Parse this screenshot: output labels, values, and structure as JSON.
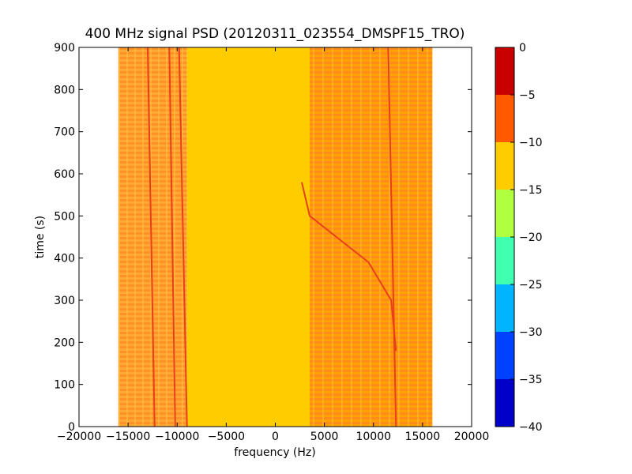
{
  "chart_data": {
    "type": "heatmap",
    "title": "400 MHz signal PSD (20120311_023554_DMSPF15_TRO)",
    "xlabel": "frequency (Hz)",
    "ylabel": "time (s)",
    "xlim": [
      -20000,
      20000
    ],
    "ylim": [
      0,
      900
    ],
    "xticks": [
      -20000,
      -15000,
      -10000,
      -5000,
      0,
      5000,
      10000,
      15000,
      20000
    ],
    "xtick_labels": [
      "−20000",
      "−15000",
      "−10000",
      "−5000",
      "0",
      "5000",
      "10000",
      "15000",
      "20000"
    ],
    "yticks": [
      0,
      100,
      200,
      300,
      400,
      500,
      600,
      700,
      800,
      900
    ],
    "ytick_labels": [
      "0",
      "100",
      "200",
      "300",
      "400",
      "500",
      "600",
      "700",
      "800",
      "900"
    ],
    "data_extent_x": [
      -16000,
      16000
    ],
    "colorbar": {
      "levels": [
        -40,
        -35,
        -30,
        -25,
        -20,
        -15,
        -10,
        -5,
        0
      ],
      "tick_labels": [
        "−40",
        "−35",
        "−30",
        "−25",
        "−20",
        "−15",
        "−10",
        "−5",
        "0"
      ],
      "colors": [
        "#0000c8",
        "#0040ff",
        "#00b4ff",
        "#40ffb0",
        "#b0ff40",
        "#ffcc00",
        "#ff5a00",
        "#c80000"
      ]
    },
    "regions": [
      {
        "x": [
          -16000,
          -9000
        ],
        "level": "-10 to -5",
        "note": "banded"
      },
      {
        "x": [
          -9000,
          3500
        ],
        "level": "-15 to -10"
      },
      {
        "x": [
          3500,
          16000
        ],
        "level": "-10 to -5",
        "note": "banded"
      }
    ],
    "traces": [
      {
        "points": [
          [
            -13000,
            900
          ],
          [
            -12300,
            0
          ]
        ]
      },
      {
        "points": [
          [
            -10800,
            900
          ],
          [
            -10200,
            0
          ]
        ]
      },
      {
        "points": [
          [
            -9800,
            900
          ],
          [
            -9000,
            0
          ]
        ]
      },
      {
        "points": [
          [
            11500,
            900
          ],
          [
            12300,
            0
          ]
        ]
      },
      {
        "points": [
          [
            2700,
            580
          ],
          [
            3500,
            500
          ],
          [
            9500,
            390
          ],
          [
            11800,
            300
          ],
          [
            12300,
            180
          ]
        ]
      }
    ]
  }
}
